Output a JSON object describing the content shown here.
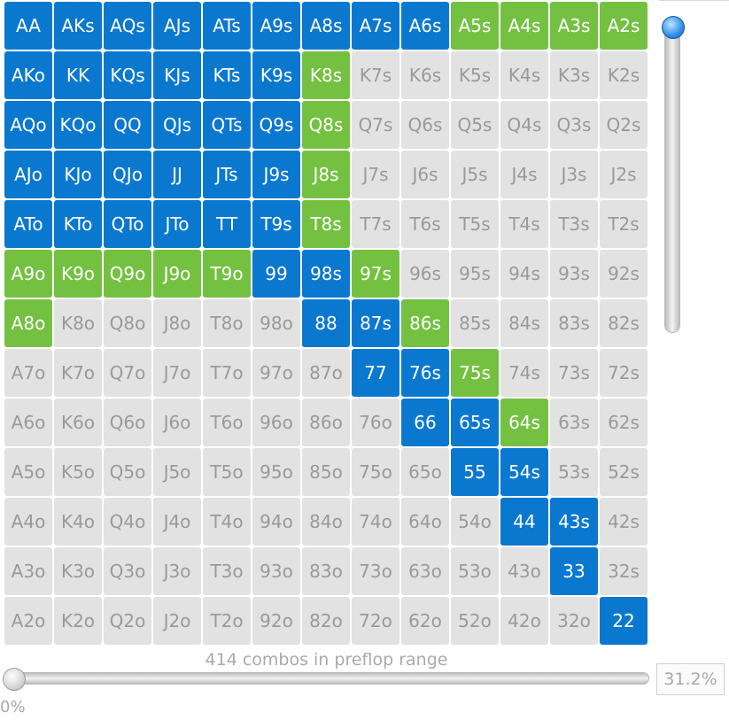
{
  "range_grid": {
    "colors": {
      "raise": "#0b78cf",
      "call": "#74c142",
      "fold": "#e2e2e2"
    },
    "rows": [
      [
        "AA",
        "AKs",
        "AQs",
        "AJs",
        "ATs",
        "A9s",
        "A8s",
        "A7s",
        "A6s",
        "A5s",
        "A4s",
        "A3s",
        "A2s"
      ],
      [
        "AKo",
        "KK",
        "KQs",
        "KJs",
        "KTs",
        "K9s",
        "K8s",
        "K7s",
        "K6s",
        "K5s",
        "K4s",
        "K3s",
        "K2s"
      ],
      [
        "AQo",
        "KQo",
        "QQ",
        "QJs",
        "QTs",
        "Q9s",
        "Q8s",
        "Q7s",
        "Q6s",
        "Q5s",
        "Q4s",
        "Q3s",
        "Q2s"
      ],
      [
        "AJo",
        "KJo",
        "QJo",
        "JJ",
        "JTs",
        "J9s",
        "J8s",
        "J7s",
        "J6s",
        "J5s",
        "J4s",
        "J3s",
        "J2s"
      ],
      [
        "ATo",
        "KTo",
        "QTo",
        "JTo",
        "TT",
        "T9s",
        "T8s",
        "T7s",
        "T6s",
        "T5s",
        "T4s",
        "T3s",
        "T2s"
      ],
      [
        "A9o",
        "K9o",
        "Q9o",
        "J9o",
        "T9o",
        "99",
        "98s",
        "97s",
        "96s",
        "95s",
        "94s",
        "93s",
        "92s"
      ],
      [
        "A8o",
        "K8o",
        "Q8o",
        "J8o",
        "T8o",
        "98o",
        "88",
        "87s",
        "86s",
        "85s",
        "84s",
        "83s",
        "82s"
      ],
      [
        "A7o",
        "K7o",
        "Q7o",
        "J7o",
        "T7o",
        "97o",
        "87o",
        "77",
        "76s",
        "75s",
        "74s",
        "73s",
        "72s"
      ],
      [
        "A6o",
        "K6o",
        "Q6o",
        "J6o",
        "T6o",
        "96o",
        "86o",
        "76o",
        "66",
        "65s",
        "64s",
        "63s",
        "62s"
      ],
      [
        "A5o",
        "K5o",
        "Q5o",
        "J5o",
        "T5o",
        "95o",
        "85o",
        "75o",
        "65o",
        "55",
        "54s",
        "53s",
        "52s"
      ],
      [
        "A4o",
        "K4o",
        "Q4o",
        "J4o",
        "T4o",
        "94o",
        "84o",
        "74o",
        "64o",
        "54o",
        "44",
        "43s",
        "42s"
      ],
      [
        "A3o",
        "K3o",
        "Q3o",
        "J3o",
        "T3o",
        "93o",
        "83o",
        "73o",
        "63o",
        "53o",
        "43o",
        "33",
        "32s"
      ],
      [
        "A2o",
        "K2o",
        "Q2o",
        "J2o",
        "T2o",
        "92o",
        "82o",
        "72o",
        "62o",
        "52o",
        "42o",
        "32o",
        "22"
      ]
    ],
    "states": [
      [
        "b",
        "b",
        "b",
        "b",
        "b",
        "b",
        "b",
        "b",
        "b",
        "g",
        "g",
        "g",
        "g"
      ],
      [
        "b",
        "b",
        "b",
        "b",
        "b",
        "b",
        "g",
        "n",
        "n",
        "n",
        "n",
        "n",
        "n"
      ],
      [
        "b",
        "b",
        "b",
        "b",
        "b",
        "b",
        "g",
        "n",
        "n",
        "n",
        "n",
        "n",
        "n"
      ],
      [
        "b",
        "b",
        "b",
        "b",
        "b",
        "b",
        "g",
        "n",
        "n",
        "n",
        "n",
        "n",
        "n"
      ],
      [
        "b",
        "b",
        "b",
        "b",
        "b",
        "b",
        "g",
        "n",
        "n",
        "n",
        "n",
        "n",
        "n"
      ],
      [
        "g",
        "g",
        "g",
        "g",
        "g",
        "b",
        "b",
        "g",
        "n",
        "n",
        "n",
        "n",
        "n"
      ],
      [
        "g",
        "n",
        "n",
        "n",
        "n",
        "n",
        "b",
        "b",
        "g",
        "n",
        "n",
        "n",
        "n"
      ],
      [
        "n",
        "n",
        "n",
        "n",
        "n",
        "n",
        "n",
        "b",
        "b",
        "g",
        "n",
        "n",
        "n"
      ],
      [
        "n",
        "n",
        "n",
        "n",
        "n",
        "n",
        "n",
        "n",
        "b",
        "b",
        "g",
        "n",
        "n"
      ],
      [
        "n",
        "n",
        "n",
        "n",
        "n",
        "n",
        "n",
        "n",
        "n",
        "b",
        "b",
        "n",
        "n"
      ],
      [
        "n",
        "n",
        "n",
        "n",
        "n",
        "n",
        "n",
        "n",
        "n",
        "n",
        "b",
        "b",
        "n"
      ],
      [
        "n",
        "n",
        "n",
        "n",
        "n",
        "n",
        "n",
        "n",
        "n",
        "n",
        "n",
        "b",
        "n"
      ],
      [
        "n",
        "n",
        "n",
        "n",
        "n",
        "n",
        "n",
        "n",
        "n",
        "n",
        "n",
        "n",
        "b"
      ]
    ]
  },
  "range_slider": {
    "label": "414 combos in preflop range",
    "value_text": "31.2%",
    "min_label": "0%"
  },
  "vertical_slider": {
    "level": 0
  }
}
